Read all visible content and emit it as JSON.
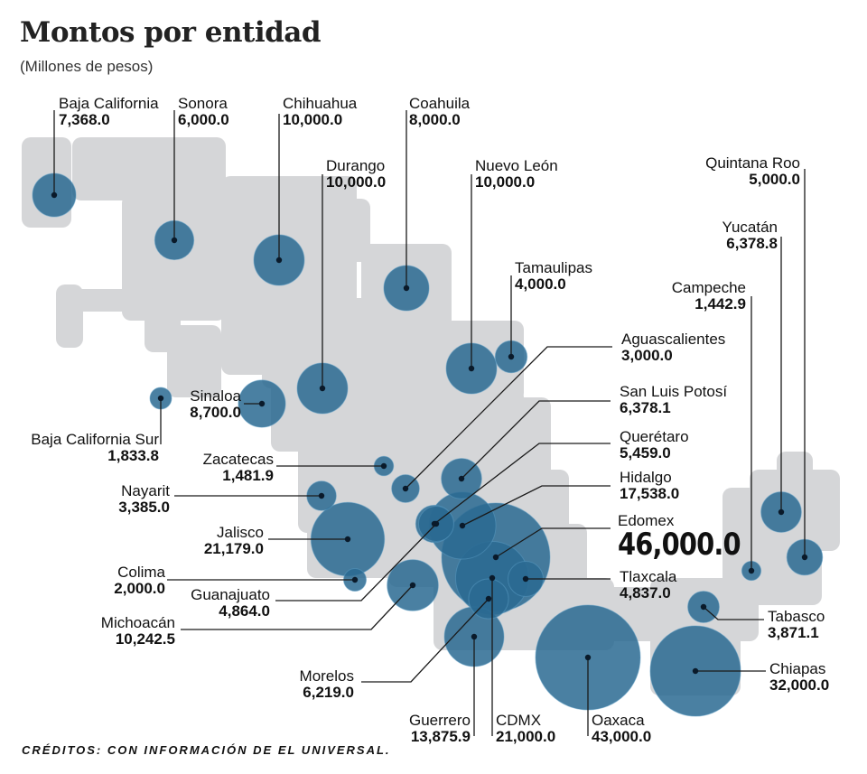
{
  "title": "Montos por entidad",
  "subtitle": "(Millones de pesos)",
  "credits": "CRÉDITOS: CON INFORMACIÓN DE EL UNIVERSAL.",
  "colors": {
    "bubble": "#2a6a92",
    "bubble_dark": "#0e3f66",
    "land": "#d5d6d8",
    "line": "#1a1a1a"
  },
  "chart_data": {
    "type": "bubble-map",
    "title": "Montos por entidad",
    "units": "Millones de pesos",
    "entities": [
      {
        "name": "Baja California",
        "value": 7368.0,
        "label": "7,368.0"
      },
      {
        "name": "Sonora",
        "value": 6000.0,
        "label": "6,000.0"
      },
      {
        "name": "Chihuahua",
        "value": 10000.0,
        "label": "10,000.0"
      },
      {
        "name": "Coahuila",
        "value": 8000.0,
        "label": "8,000.0"
      },
      {
        "name": "Durango",
        "value": 10000.0,
        "label": "10,000.0"
      },
      {
        "name": "Nuevo León",
        "value": 10000.0,
        "label": "10,000.0"
      },
      {
        "name": "Tamaulipas",
        "value": 4000.0,
        "label": "4,000.0"
      },
      {
        "name": "Quintana Roo",
        "value": 5000.0,
        "label": "5,000.0"
      },
      {
        "name": "Yucatán",
        "value": 6378.8,
        "label": "6,378.8"
      },
      {
        "name": "Campeche",
        "value": 1442.9,
        "label": "1,442.9"
      },
      {
        "name": "Aguascalientes",
        "value": 3000.0,
        "label": "3,000.0"
      },
      {
        "name": "San Luis Potosí",
        "value": 6378.1,
        "label": "6,378.1"
      },
      {
        "name": "Querétaro",
        "value": 5459.0,
        "label": "5,459.0"
      },
      {
        "name": "Hidalgo",
        "value": 17538.0,
        "label": "17,538.0"
      },
      {
        "name": "Edomex",
        "value": 46000.0,
        "label": "46,000.0"
      },
      {
        "name": "Tlaxcala",
        "value": 4837.0,
        "label": "4,837.0"
      },
      {
        "name": "Tabasco",
        "value": 3871.1,
        "label": "3,871.1"
      },
      {
        "name": "Chiapas",
        "value": 32000.0,
        "label": "32,000.0"
      },
      {
        "name": "Oaxaca",
        "value": 43000.0,
        "label": "43,000.0"
      },
      {
        "name": "CDMX",
        "value": 21000.0,
        "label": "21,000.0"
      },
      {
        "name": "Guerrero",
        "value": 13875.9,
        "label": "13,875.9"
      },
      {
        "name": "Morelos",
        "value": 6219.0,
        "label": "6,219.0"
      },
      {
        "name": "Michoacán",
        "value": 10242.5,
        "label": "10,242.5"
      },
      {
        "name": "Guanajuato",
        "value": 4864.0,
        "label": "4,864.0"
      },
      {
        "name": "Colima",
        "value": 2000.0,
        "label": "2,000.0"
      },
      {
        "name": "Jalisco",
        "value": 21179.0,
        "label": "21,179.0"
      },
      {
        "name": "Nayarit",
        "value": 3385.0,
        "label": "3,385.0"
      },
      {
        "name": "Zacatecas",
        "value": 1481.9,
        "label": "1,481.9"
      },
      {
        "name": "Baja California Sur",
        "value": 1833.8,
        "label": "1,833.8"
      },
      {
        "name": "Sinaloa",
        "value": 8700.0,
        "label": "8,700.0"
      }
    ]
  }
}
